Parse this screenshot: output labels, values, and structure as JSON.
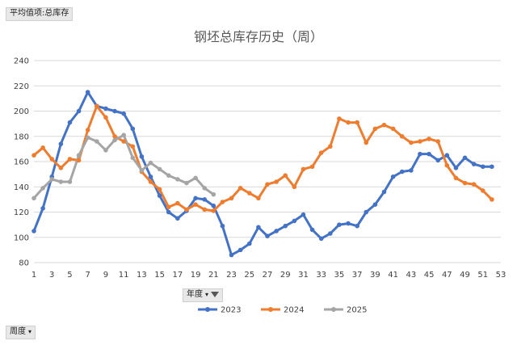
{
  "filter_tag": {
    "label": "平均值项:总库存"
  },
  "year_field": {
    "label": "年度"
  },
  "week_field": {
    "label": "周度"
  },
  "chart_data": {
    "type": "line",
    "title": "钢坯总库存历史（周）",
    "xlabel": "",
    "ylabel": "",
    "ylim": [
      80,
      240
    ],
    "yticks": [
      80,
      100,
      120,
      140,
      160,
      180,
      200,
      220,
      240
    ],
    "xlim": [
      1,
      53
    ],
    "xticks": [
      1,
      3,
      5,
      7,
      9,
      11,
      13,
      15,
      17,
      19,
      21,
      23,
      25,
      27,
      29,
      31,
      33,
      35,
      37,
      39,
      41,
      43,
      45,
      47,
      49,
      51,
      53
    ],
    "grid": true,
    "legend_position": "bottom",
    "series": [
      {
        "name": "2023",
        "color": "#4472C4",
        "x": [
          1,
          2,
          3,
          4,
          5,
          6,
          7,
          8,
          9,
          10,
          11,
          12,
          13,
          14,
          15,
          16,
          17,
          18,
          19,
          20,
          21,
          22,
          23,
          24,
          25,
          26,
          27,
          28,
          29,
          30,
          31,
          32,
          33,
          34,
          35,
          36,
          37,
          38,
          39,
          40,
          41,
          42,
          43,
          44,
          45,
          46,
          47,
          48,
          49,
          50,
          51,
          52
        ],
        "values": [
          105,
          123,
          148,
          174,
          191,
          200,
          215,
          204,
          202,
          200,
          198,
          186,
          164,
          148,
          133,
          120,
          115,
          121,
          131,
          130,
          125,
          109,
          86,
          90,
          95,
          108,
          101,
          105,
          109,
          113,
          118,
          106,
          99,
          103,
          110,
          111,
          109,
          120,
          126,
          136,
          148,
          152,
          153,
          166,
          166,
          161,
          165,
          155,
          163,
          158,
          156,
          156
        ]
      },
      {
        "name": "2024",
        "color": "#ED7D31",
        "x": [
          1,
          2,
          3,
          4,
          5,
          6,
          7,
          8,
          9,
          10,
          11,
          12,
          13,
          14,
          15,
          16,
          17,
          18,
          19,
          20,
          21,
          22,
          23,
          24,
          25,
          26,
          27,
          28,
          29,
          30,
          31,
          32,
          33,
          34,
          35,
          36,
          37,
          38,
          39,
          40,
          41,
          42,
          43,
          44,
          45,
          46,
          47,
          48,
          49,
          50,
          51,
          52
        ],
        "values": [
          165,
          171,
          162,
          155,
          162,
          161,
          185,
          204,
          195,
          180,
          176,
          172,
          152,
          144,
          138,
          124,
          127,
          122,
          126,
          122,
          121,
          128,
          131,
          139,
          135,
          131,
          142,
          144,
          149,
          140,
          154,
          156,
          167,
          172,
          194,
          191,
          191,
          175,
          186,
          189,
          186,
          180,
          175,
          176,
          178,
          176,
          157,
          147,
          143,
          142,
          137,
          130
        ]
      },
      {
        "name": "2025",
        "color": "#A5A5A5",
        "x": [
          1,
          2,
          3,
          4,
          5,
          6,
          7,
          8,
          9,
          10,
          11,
          12,
          13,
          14,
          15,
          16,
          17,
          18,
          19,
          20,
          21
        ],
        "values": [
          131,
          139,
          146,
          144,
          144,
          165,
          179,
          176,
          169,
          177,
          181,
          163,
          153,
          159,
          154,
          149,
          146,
          143,
          147,
          139,
          134
        ]
      }
    ]
  }
}
